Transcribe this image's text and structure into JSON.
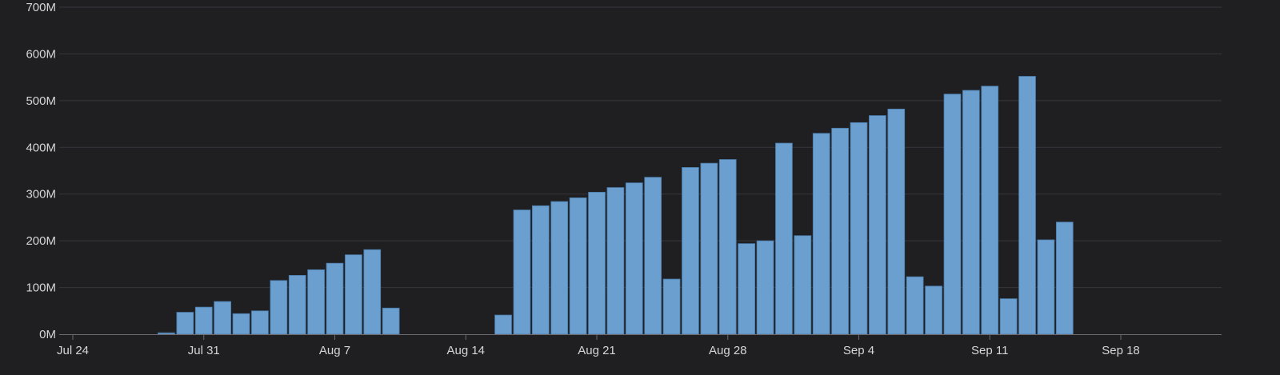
{
  "colors": {
    "background": "#1f1f22",
    "grid": "#37373c",
    "axis": "#6a6a70",
    "bar_fill": "#6a9fcf",
    "bar_stroke": "#4a7aa8",
    "text": "#d6d6d9"
  },
  "chart_data": {
    "type": "bar",
    "title": "",
    "xlabel": "",
    "ylabel": "",
    "grid": true,
    "legend": "none",
    "ylim": [
      0,
      700
    ],
    "y_unit_suffix": "M",
    "y_ticks": [
      0,
      100,
      200,
      300,
      400,
      500,
      600,
      700
    ],
    "y_tick_labels": [
      "0M",
      "100M",
      "200M",
      "300M",
      "400M",
      "500M",
      "600M",
      "700M"
    ],
    "x_range": [
      "2023-07-24",
      "2023-09-23"
    ],
    "x_ticks": [
      "2023-07-24",
      "2023-07-31",
      "2023-08-07",
      "2023-08-14",
      "2023-08-21",
      "2023-08-28",
      "2023-09-04",
      "2023-09-11",
      "2023-09-18"
    ],
    "x_tick_labels": [
      "Jul 24",
      "Jul 31",
      "Aug 7",
      "Aug 14",
      "Aug 21",
      "Aug 28",
      "Sep 4",
      "Sep 11",
      "Sep 18"
    ],
    "series": [
      {
        "x": [
          "2023-07-29",
          "2023-07-30",
          "2023-07-31",
          "2023-08-01",
          "2023-08-02",
          "2023-08-03",
          "2023-08-04",
          "2023-08-05",
          "2023-08-06",
          "2023-08-07",
          "2023-08-08",
          "2023-08-09",
          "2023-08-10",
          "2023-08-11",
          "2023-08-12",
          "2023-08-13",
          "2023-08-14",
          "2023-08-15",
          "2023-08-16",
          "2023-08-17",
          "2023-08-18",
          "2023-08-19",
          "2023-08-20",
          "2023-08-21",
          "2023-08-22",
          "2023-08-23",
          "2023-08-24",
          "2023-08-25",
          "2023-08-26",
          "2023-08-27",
          "2023-08-28",
          "2023-08-29",
          "2023-08-30",
          "2023-08-31",
          "2023-09-01",
          "2023-09-02",
          "2023-09-03",
          "2023-09-04",
          "2023-09-05",
          "2023-09-06",
          "2023-09-07",
          "2023-09-08",
          "2023-09-09",
          "2023-09-10",
          "2023-09-11",
          "2023-09-12",
          "2023-09-13",
          "2023-09-14",
          "2023-09-15"
        ],
        "values": [
          3,
          47,
          58,
          70,
          44,
          50,
          115,
          126,
          138,
          152,
          170,
          181,
          56,
          0,
          0,
          0,
          0,
          0,
          41,
          266,
          275,
          284,
          292,
          304,
          314,
          324,
          336,
          118,
          357,
          366,
          374,
          194,
          200,
          409,
          211,
          430,
          441,
          453,
          468,
          482,
          123,
          103,
          514,
          522,
          531,
          76,
          552,
          202,
          240
        ]
      }
    ]
  }
}
